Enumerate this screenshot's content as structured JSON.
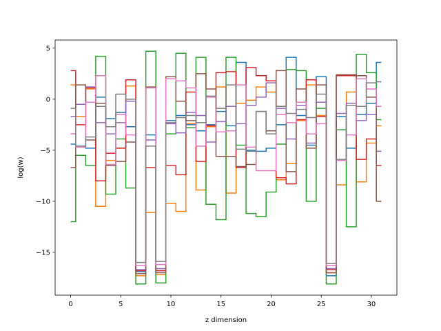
{
  "chart_data": {
    "type": "line",
    "drawstyle": "steps-mid",
    "title": "",
    "xlabel": "z dimension",
    "ylabel": "log(w)",
    "xlim": [
      -1.55,
      32.55
    ],
    "ylim": [
      -19.2,
      5.8
    ],
    "xticks": [
      0,
      5,
      10,
      15,
      20,
      25,
      30
    ],
    "yticks": [
      5,
      0,
      -5,
      -10,
      -15
    ],
    "ytick_labels": [
      "5",
      "0",
      "−5",
      "−10",
      "−15"
    ],
    "grid": false,
    "legend": "none",
    "x": [
      0,
      1,
      2,
      3,
      4,
      5,
      6,
      7,
      8,
      9,
      10,
      11,
      12,
      13,
      14,
      15,
      16,
      17,
      18,
      19,
      20,
      21,
      22,
      23,
      24,
      25,
      26,
      27,
      28,
      29,
      30,
      31
    ],
    "series": [
      {
        "color": "#1f77b4",
        "values": [
          -4.4,
          -4.6,
          -4.8,
          0.2,
          -1.9,
          -1.3,
          -2.7,
          -16.9,
          -3.5,
          -16.8,
          -2.1,
          -1.6,
          -2.5,
          -3.1,
          -2.5,
          -1.2,
          -2.6,
          3.6,
          -5.0,
          -5.1,
          -4.8,
          -2.5,
          4.1,
          -1.6,
          -4.5,
          2.2,
          -17.3,
          -1.7,
          -4.8,
          -1.5,
          -0.4,
          3.6
        ]
      },
      {
        "color": "#ff7f0e",
        "values": [
          1.4,
          -1.7,
          1.0,
          -10.5,
          -6.0,
          -4.8,
          1.3,
          -17.3,
          -11.1,
          -17.2,
          -10.2,
          -11.0,
          -2.4,
          -8.9,
          -2.7,
          1.2,
          -9.2,
          -0.4,
          -0.1,
          1.2,
          0.7,
          -7.9,
          -6.3,
          -2.1,
          1.4,
          -1.6,
          -17.0,
          -8.4,
          0.7,
          -8.1,
          -4.3,
          -2.6
        ]
      },
      {
        "color": "#2ca02c",
        "values": [
          -12.0,
          -5.5,
          -6.5,
          4.2,
          -9.3,
          -3.9,
          -8.7,
          -18.1,
          4.7,
          -18.0,
          -3.4,
          4.5,
          -2.8,
          4.1,
          -10.3,
          -11.8,
          4.1,
          -4.5,
          -11.2,
          -11.5,
          -9.1,
          -4.4,
          2.9,
          2.8,
          -10.0,
          -0.9,
          -18.1,
          -3.0,
          -12.5,
          4.4,
          2.6,
          -2.0
        ]
      },
      {
        "color": "#d62728",
        "values": [
          2.8,
          -2.5,
          1.1,
          -8.0,
          -5.3,
          -4.8,
          1.9,
          -16.8,
          -6.7,
          -16.8,
          -6.5,
          -7.4,
          0.7,
          -6.1,
          -2.6,
          2.6,
          2.7,
          -6.7,
          3.1,
          2.3,
          1.8,
          -7.7,
          -8.3,
          -2.0,
          1.9,
          -1.7,
          -16.7,
          2.3,
          2.3,
          -5.9,
          -3.9,
          -6.5
        ]
      },
      {
        "color": "#9467bd",
        "values": [
          -1.7,
          -0.5,
          1.2,
          -2.3,
          -3.4,
          -2.3,
          -0.2,
          -16.7,
          -4.0,
          -16.6,
          -2.4,
          -3.3,
          -1.3,
          -1.6,
          -4.2,
          -2.2,
          -0.7,
          -2.4,
          -0.6,
          0.2,
          1.6,
          -0.9,
          -3.9,
          -0.6,
          -4.3,
          -0.3,
          -16.6,
          -1.4,
          -0.4,
          -2.1,
          -1.5,
          -5.1
        ]
      },
      {
        "color": "#8c564b",
        "values": [
          -6.7,
          1.4,
          -4.0,
          -0.4,
          -6.5,
          -6.1,
          -4.2,
          -17.1,
          1.2,
          -17.0,
          2.2,
          -0.2,
          -2.1,
          2.5,
          1.0,
          -5.6,
          -5.6,
          -6.6,
          -6.4,
          -1.2,
          -3.1,
          2.8,
          -7.1,
          1.0,
          -4.8,
          1.4,
          -17.0,
          2.4,
          2.4,
          2.3,
          0.2,
          -10.0
        ]
      },
      {
        "color": "#e377c2",
        "values": [
          -3.4,
          -4.7,
          -0.3,
          2.3,
          -6.4,
          -1.5,
          -3.5,
          -16.3,
          1.1,
          -16.2,
          2.0,
          1.8,
          1.1,
          -4.6,
          0.2,
          -3.2,
          -3.1,
          1.4,
          -4.7,
          -7.0,
          -7.0,
          -1.5,
          -2.3,
          -0.3,
          -3.4,
          -2.4,
          -16.3,
          -6.0,
          -3.5,
          2.0,
          1.0,
          -0.7
        ]
      },
      {
        "color": "#7f7f7f",
        "values": [
          -0.9,
          -4.6,
          -3.7,
          -0.7,
          -2.7,
          0.5,
          0.0,
          -16.0,
          -4.6,
          -15.9,
          -2.3,
          -1.8,
          -1.6,
          -2.3,
          0.3,
          -0.9,
          1.4,
          -4.9,
          -5.1,
          -1.2,
          -3.4,
          -0.7,
          -1.4,
          -1.0,
          -1.8,
          0.5,
          -16.1,
          -5.9,
          -0.6,
          -0.7,
          1.6,
          1.7
        ]
      }
    ]
  }
}
